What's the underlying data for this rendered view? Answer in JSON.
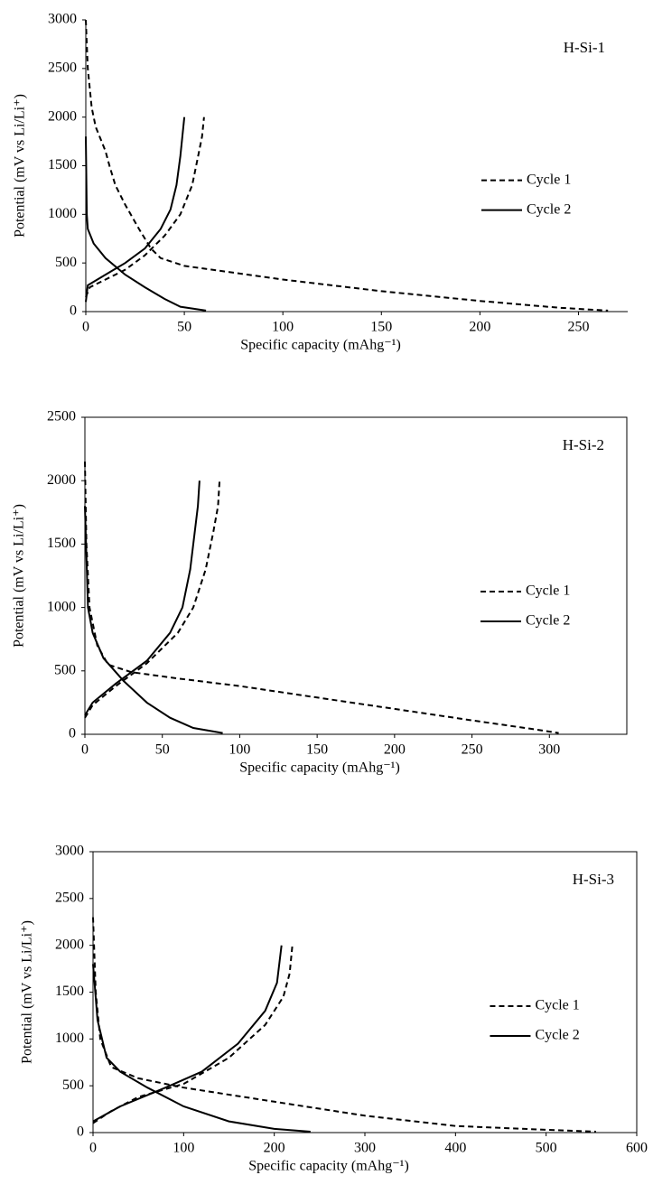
{
  "chart_data": [
    {
      "type": "line",
      "annotation": "H-Si-1",
      "xlabel": "Specific capacity (mAhg⁻¹)",
      "ylabel": "Potential (mV vs Li/Li⁺)",
      "xlim": [
        0,
        275
      ],
      "ylim": [
        0,
        3000
      ],
      "xticks": [
        0,
        50,
        100,
        150,
        200,
        250
      ],
      "yticks": [
        0,
        500,
        1000,
        1500,
        2000,
        2500,
        3000
      ],
      "frame": false,
      "legend": "right",
      "series": [
        {
          "name": "Cycle 1",
          "color": "#000000",
          "line_style": "dashed",
          "x": [
            0,
            1,
            3,
            5,
            10,
            12,
            15,
            20,
            27,
            33,
            38,
            50,
            75,
            100,
            150,
            200,
            240,
            265,
            null,
            0,
            2,
            10,
            20,
            30,
            40,
            48,
            54,
            57,
            59,
            60
          ],
          "values": [
            3000,
            2500,
            2100,
            1900,
            1650,
            1500,
            1300,
            1100,
            850,
            650,
            550,
            470,
            400,
            330,
            210,
            110,
            40,
            10,
            null,
            150,
            250,
            330,
            430,
            580,
            780,
            1000,
            1300,
            1600,
            1800,
            2000
          ]
        },
        {
          "name": "Cycle 2",
          "color": "#000000",
          "line_style": "solid",
          "x": [
            0,
            0.5,
            1,
            4,
            10,
            20,
            30,
            40,
            48,
            61,
            null,
            0,
            1,
            10,
            20,
            30,
            38,
            43,
            46,
            48,
            49,
            50
          ],
          "values": [
            1800,
            1000,
            850,
            700,
            550,
            380,
            250,
            130,
            50,
            10,
            null,
            100,
            270,
            380,
            500,
            650,
            850,
            1050,
            1300,
            1600,
            1800,
            2000
          ]
        }
      ]
    },
    {
      "type": "line",
      "annotation": "H-Si-2",
      "xlabel": "Specific capacity (mAhg⁻¹)",
      "ylabel": "Potential (mV vs Li/Li⁺)",
      "xlim": [
        0,
        350
      ],
      "ylim": [
        0,
        2500
      ],
      "xticks": [
        0,
        50,
        100,
        150,
        200,
        250,
        300
      ],
      "yticks": [
        0,
        500,
        1000,
        1500,
        2000,
        2500
      ],
      "frame": true,
      "legend": "right",
      "series": [
        {
          "name": "Cycle 1",
          "color": "#000000",
          "line_style": "dashed",
          "x": [
            0,
            1,
            3,
            8,
            15,
            30,
            60,
            100,
            150,
            200,
            250,
            290,
            306,
            null,
            0,
            5,
            20,
            40,
            60,
            70,
            78,
            83,
            86,
            87
          ],
          "values": [
            2150,
            1500,
            1000,
            700,
            550,
            490,
            440,
            380,
            290,
            200,
            110,
            40,
            10,
            null,
            130,
            230,
            380,
            560,
            800,
            1000,
            1300,
            1600,
            1800,
            2000
          ]
        },
        {
          "name": "Cycle 2",
          "color": "#000000",
          "line_style": "solid",
          "x": [
            0,
            2,
            5,
            12,
            25,
            40,
            55,
            70,
            89,
            null,
            0,
            5,
            20,
            40,
            55,
            63,
            68,
            71,
            73,
            74
          ],
          "values": [
            1800,
            1000,
            800,
            600,
            420,
            250,
            130,
            50,
            10,
            null,
            150,
            250,
            400,
            580,
            800,
            1000,
            1300,
            1600,
            1800,
            2000
          ]
        }
      ]
    },
    {
      "type": "line",
      "annotation": "H-Si-3",
      "xlabel": "Specific capacity (mAhg⁻¹)",
      "ylabel": "Potential (mV vs Li/Li⁺)",
      "xlim": [
        0,
        600
      ],
      "ylim": [
        0,
        3000
      ],
      "xticks": [
        0,
        100,
        200,
        300,
        400,
        500,
        600
      ],
      "yticks": [
        0,
        500,
        1000,
        1500,
        2000,
        2500,
        3000
      ],
      "frame": true,
      "legend": "right",
      "series": [
        {
          "name": "Cycle 1",
          "color": "#000000",
          "line_style": "dashed",
          "x": [
            0,
            3,
            8,
            20,
            50,
            100,
            200,
            300,
            400,
            500,
            555,
            null,
            0,
            20,
            50,
            100,
            150,
            190,
            210,
            217,
            220
          ],
          "values": [
            2300,
            1500,
            1000,
            700,
            580,
            480,
            330,
            180,
            70,
            30,
            10,
            null,
            100,
            230,
            380,
            520,
            800,
            1150,
            1450,
            1700,
            2000
          ]
        },
        {
          "name": "Cycle 2",
          "color": "#000000",
          "line_style": "solid",
          "x": [
            0,
            5,
            15,
            30,
            60,
            100,
            150,
            200,
            240,
            null,
            0,
            30,
            80,
            120,
            160,
            190,
            203,
            208
          ],
          "values": [
            1800,
            1200,
            800,
            650,
            480,
            280,
            120,
            40,
            10,
            null,
            120,
            280,
            480,
            650,
            950,
            1300,
            1600,
            2000
          ]
        }
      ]
    }
  ]
}
